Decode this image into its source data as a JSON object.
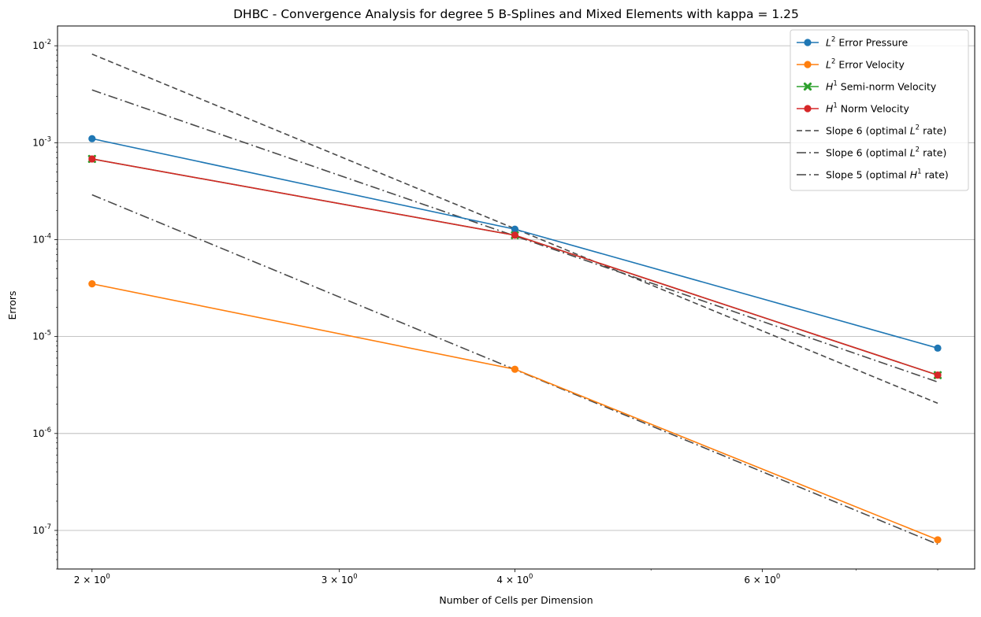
{
  "chart_data": {
    "type": "line",
    "title": "DHBC - Convergence Analysis for degree 5 B-Splines and Mixed Elements with kappa = 1.25",
    "xlabel": "Number of Cells per Dimension",
    "ylabel": "Errors",
    "xscale": "log",
    "yscale": "log",
    "xlim": [
      1.89,
      8.5
    ],
    "ylim": [
      4e-08,
      0.016
    ],
    "grid": "horizontal major",
    "legend_position": "top-right",
    "x_ticks": [
      {
        "value": 2,
        "base": "2",
        "exp": "0"
      },
      {
        "value": 3,
        "base": "3",
        "exp": "0"
      },
      {
        "value": 4,
        "base": "4",
        "exp": "0"
      },
      {
        "value": 6,
        "base": "6",
        "exp": "0"
      }
    ],
    "x_minor_ticks": [
      5,
      7,
      8
    ],
    "y_ticks": [
      {
        "value": 1e-07,
        "exp": "-7"
      },
      {
        "value": 1e-06,
        "exp": "-6"
      },
      {
        "value": 1e-05,
        "exp": "-5"
      },
      {
        "value": 0.0001,
        "exp": "-4"
      },
      {
        "value": 0.001,
        "exp": "-3"
      },
      {
        "value": 0.01,
        "exp": "-2"
      }
    ],
    "series": [
      {
        "name": "Error Pressure",
        "norm": "L",
        "sup": "2",
        "color": "#1f77b4",
        "marker": "circle",
        "dash": "",
        "x": [
          2,
          4,
          8
        ],
        "y": [
          0.0011,
          0.000128,
          7.6e-06
        ]
      },
      {
        "name": "Error Velocity",
        "norm": "L",
        "sup": "2",
        "color": "#ff7f0e",
        "marker": "circle",
        "dash": "",
        "x": [
          2,
          4,
          8
        ],
        "y": [
          3.5e-05,
          4.6e-06,
          8e-08
        ]
      },
      {
        "name": "Semi-norm Velocity",
        "norm": "H",
        "sup": "1",
        "color": "#2ca02c",
        "marker": "x",
        "dash": "",
        "x": [
          2,
          4,
          8
        ],
        "y": [
          0.00068,
          0.000111,
          4e-06
        ]
      },
      {
        "name": "Norm Velocity",
        "norm": "H",
        "sup": "1",
        "color": "#d62728",
        "marker": "circle",
        "dash": "",
        "x": [
          2,
          4,
          8
        ],
        "y": [
          0.00068,
          0.000111,
          4e-06
        ]
      },
      {
        "name": "Slope 6 (optimal ",
        "norm": "L",
        "sup": "2",
        "suffix": " rate)",
        "color": "#404040",
        "marker": "none",
        "dash": "7,4",
        "x": [
          2,
          8
        ],
        "y": [
          0.0082,
          2.05e-06
        ]
      },
      {
        "name": "Slope 6 (optimal ",
        "norm": "L",
        "sup": "2",
        "suffix": " rate)",
        "color": "#404040",
        "marker": "none",
        "dash": "12,4,2,4",
        "x": [
          2,
          8
        ],
        "y": [
          0.00029,
          7.2e-08
        ]
      },
      {
        "name": "Slope 5 (optimal ",
        "norm": "H",
        "sup": "1",
        "suffix": " rate)",
        "color": "#404040",
        "marker": "none",
        "dash": "12,4,2,4",
        "x": [
          2,
          8
        ],
        "y": [
          0.0035,
          3.4e-06
        ]
      }
    ]
  }
}
